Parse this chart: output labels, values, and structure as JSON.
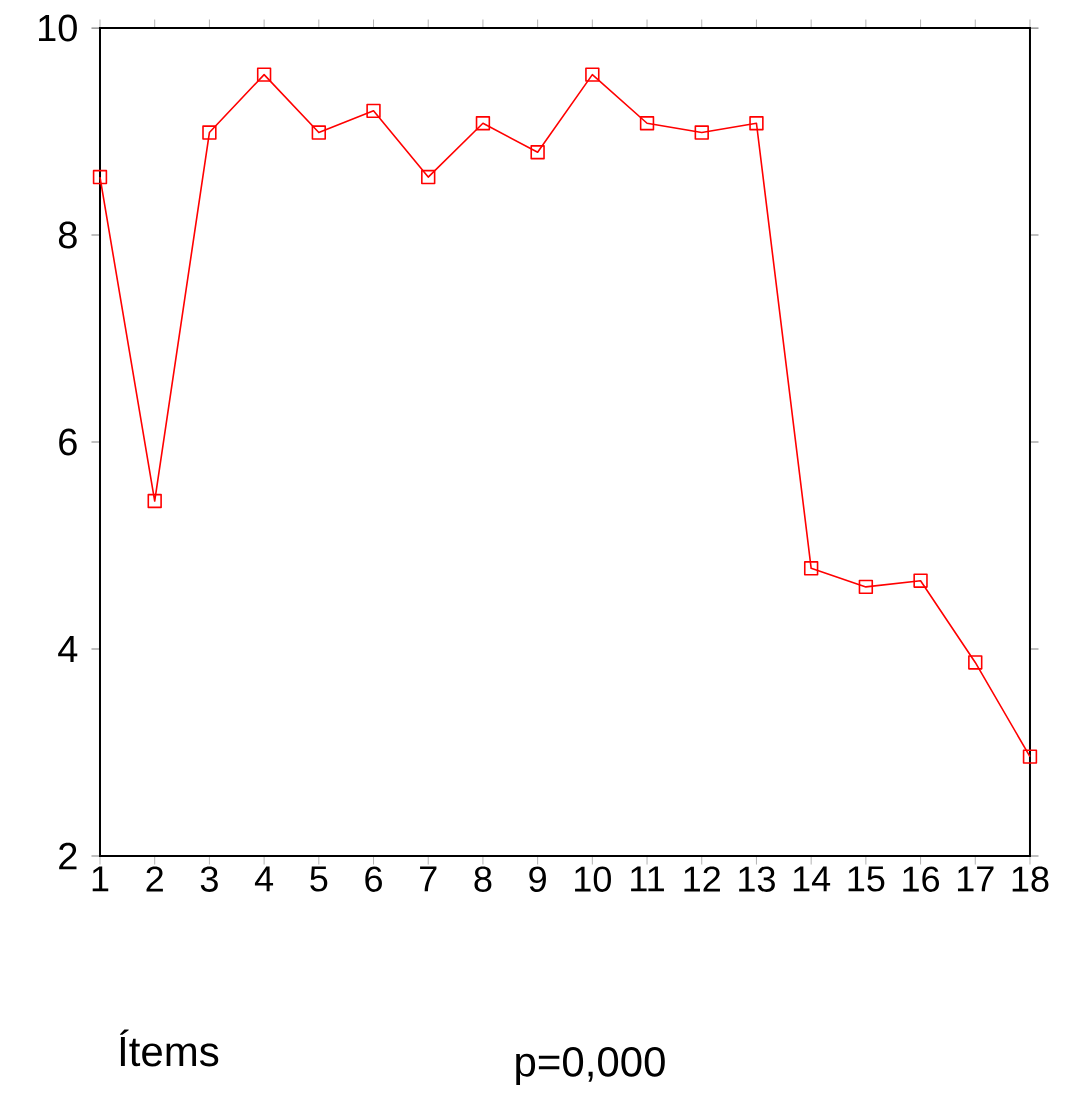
{
  "chart_data": {
    "type": "line",
    "xlabel": "Ítems",
    "annotations": [
      "p=0,000"
    ],
    "x": [
      1,
      2,
      3,
      4,
      5,
      6,
      7,
      8,
      9,
      10,
      11,
      12,
      13,
      14,
      15,
      16,
      17,
      18
    ],
    "series": [
      {
        "color": "#ff0000",
        "values": [
          8.56,
          5.43,
          8.99,
          9.55,
          8.99,
          9.2,
          8.56,
          9.08,
          8.8,
          9.55,
          9.08,
          8.99,
          9.08,
          4.78,
          4.6,
          4.66,
          3.87,
          2.96
        ]
      }
    ],
    "xlim": [
      1,
      18
    ],
    "xticks": [
      1,
      2,
      3,
      4,
      5,
      6,
      7,
      8,
      9,
      10,
      11,
      12,
      13,
      14,
      15,
      16,
      17,
      18
    ],
    "ylim": [
      2,
      10
    ],
    "yticks": [
      2,
      4,
      6,
      8,
      10
    ],
    "marker": "square",
    "line_style": "solid"
  }
}
